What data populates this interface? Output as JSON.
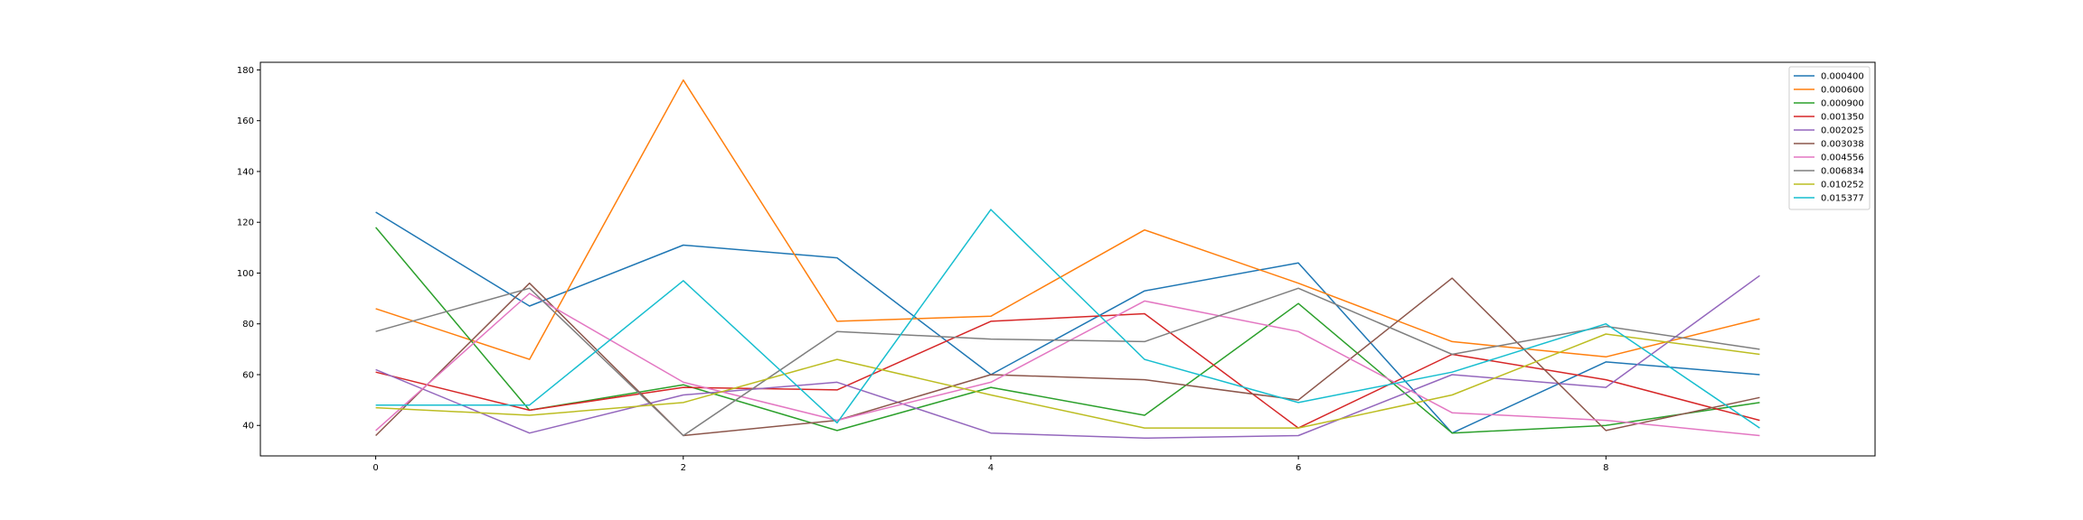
{
  "chart_data": {
    "type": "line",
    "title": "",
    "xlabel": "",
    "ylabel": "",
    "x": [
      0,
      1,
      2,
      3,
      4,
      5,
      6,
      7,
      8,
      9
    ],
    "xlim": [
      -0.75,
      9.75
    ],
    "ylim": [
      28,
      183
    ],
    "xticks": [
      0,
      2,
      4,
      6,
      8
    ],
    "yticks": [
      40,
      60,
      80,
      100,
      120,
      140,
      160,
      180
    ],
    "grid": false,
    "legend_position": "top-right",
    "series": [
      {
        "name": "0.000400",
        "color": "#1f77b4",
        "values": [
          124,
          87,
          111,
          106,
          60,
          93,
          104,
          37,
          65,
          60
        ]
      },
      {
        "name": "0.000600",
        "color": "#ff7f0e",
        "values": [
          86,
          66,
          176,
          81,
          83,
          117,
          96,
          73,
          67,
          82
        ]
      },
      {
        "name": "0.000900",
        "color": "#2ca02c",
        "values": [
          118,
          46,
          56,
          38,
          55,
          44,
          88,
          37,
          40,
          49
        ]
      },
      {
        "name": "0.001350",
        "color": "#d62728",
        "values": [
          61,
          46,
          55,
          54,
          81,
          84,
          39,
          68,
          58,
          42
        ]
      },
      {
        "name": "0.002025",
        "color": "#9467bd",
        "values": [
          62,
          37,
          52,
          57,
          37,
          35,
          36,
          60,
          55,
          99
        ]
      },
      {
        "name": "0.003038",
        "color": "#8c564b",
        "values": [
          36,
          96,
          36,
          42,
          60,
          58,
          50,
          98,
          38,
          51
        ]
      },
      {
        "name": "0.004556",
        "color": "#e377c2",
        "values": [
          38,
          92,
          57,
          42,
          57,
          89,
          77,
          45,
          42,
          36
        ]
      },
      {
        "name": "0.006834",
        "color": "#7f7f7f",
        "values": [
          77,
          94,
          36,
          77,
          74,
          73,
          94,
          68,
          79,
          70
        ]
      },
      {
        "name": "0.010252",
        "color": "#bcbd22",
        "values": [
          47,
          44,
          49,
          66,
          52,
          39,
          39,
          52,
          76,
          68
        ]
      },
      {
        "name": "0.015377",
        "color": "#17becf",
        "values": [
          48,
          48,
          97,
          41,
          125,
          66,
          49,
          61,
          80,
          39
        ]
      }
    ]
  }
}
